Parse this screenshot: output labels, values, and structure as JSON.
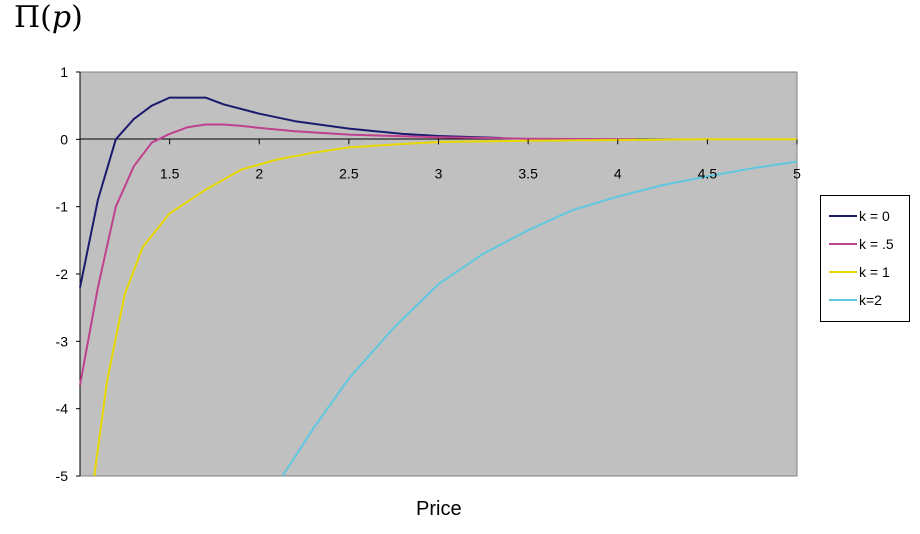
{
  "chart_data": {
    "type": "line",
    "title_prefix": "Π(",
    "title_var": "p",
    "title_suffix": ")",
    "xlabel": "Price",
    "ylabel": "",
    "xlim": [
      1.0,
      5.0
    ],
    "ylim": [
      -5,
      1
    ],
    "x_ticks": [
      1.5,
      2,
      2.5,
      3,
      3.5,
      4,
      4.5,
      5
    ],
    "x_tick_labels": [
      "1.5",
      "2",
      "2.5",
      "3",
      "3.5",
      "4",
      "4.5",
      "5"
    ],
    "y_ticks": [
      1,
      0,
      -1,
      -2,
      -3,
      -4,
      -5
    ],
    "y_tick_labels": [
      "1",
      "0",
      "-1",
      "-2",
      "-3",
      "-4",
      "-5"
    ],
    "grid": false,
    "background": "#c0c0c0",
    "legend_position": "right",
    "series": [
      {
        "name": "k = 0",
        "color": "#1a1a6e",
        "x": [
          1.0,
          1.1,
          1.2,
          1.3,
          1.4,
          1.5,
          1.6,
          1.7,
          1.8,
          2.0,
          2.2,
          2.5,
          2.8,
          3.0,
          3.35
        ],
        "y": [
          -2.2,
          -0.9,
          0.0,
          0.3,
          0.5,
          0.62,
          0.62,
          0.62,
          0.52,
          0.38,
          0.27,
          0.16,
          0.08,
          0.05,
          0.02
        ]
      },
      {
        "name": "k = .5",
        "color": "#c04090",
        "x": [
          1.0,
          1.1,
          1.2,
          1.3,
          1.4,
          1.5,
          1.6,
          1.7,
          1.8,
          1.9,
          2.0,
          2.2,
          2.5,
          3.0,
          3.5,
          4.1
        ],
        "y": [
          -3.65,
          -2.2,
          -1.0,
          -0.4,
          -0.05,
          0.08,
          0.18,
          0.22,
          0.22,
          0.2,
          0.17,
          0.12,
          0.07,
          0.03,
          0.01,
          0.0
        ]
      },
      {
        "name": "k = 1",
        "color": "#e8d800",
        "x": [
          1.08,
          1.15,
          1.25,
          1.35,
          1.5,
          1.7,
          1.9,
          2.1,
          2.3,
          2.5,
          2.8,
          3.0,
          3.5,
          4.0,
          4.5,
          5.0
        ],
        "y": [
          -5.0,
          -3.6,
          -2.3,
          -1.6,
          -1.1,
          -0.75,
          -0.45,
          -0.3,
          -0.2,
          -0.12,
          -0.07,
          -0.04,
          -0.02,
          -0.01,
          0.0,
          0.0
        ]
      },
      {
        "name": "k=2",
        "color": "#60c8e0",
        "x": [
          2.13,
          2.3,
          2.5,
          2.75,
          3.0,
          3.25,
          3.5,
          3.75,
          4.0,
          4.25,
          4.5,
          4.75,
          5.0
        ],
        "y": [
          -5.0,
          -4.3,
          -3.55,
          -2.8,
          -2.15,
          -1.7,
          -1.35,
          -1.05,
          -0.85,
          -0.68,
          -0.55,
          -0.43,
          -0.33
        ]
      }
    ]
  }
}
